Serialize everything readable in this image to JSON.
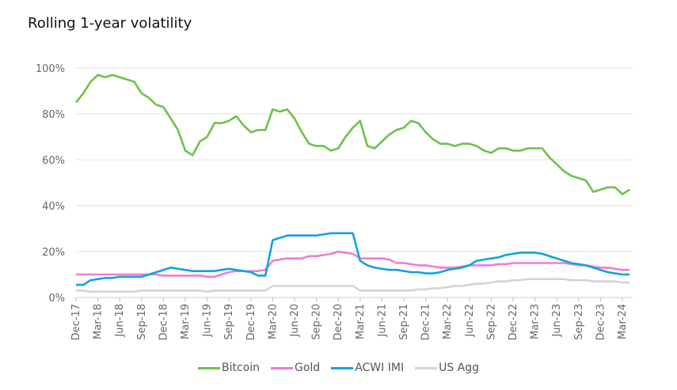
{
  "chart_data": {
    "type": "line",
    "title": "Rolling 1-year volatility",
    "xlabel": "",
    "ylabel": "",
    "ylim": [
      0,
      100
    ],
    "y_ticks": [
      "0%",
      "20%",
      "40%",
      "60%",
      "80%",
      "100%"
    ],
    "y_tick_values": [
      0,
      20,
      40,
      60,
      80,
      100
    ],
    "x_ticks": [
      "Dec-17",
      "Mar-18",
      "Jun-18",
      "Sep-18",
      "Dec-18",
      "Mar-19",
      "Jun-19",
      "Sep-19",
      "Dec-19",
      "Mar-20",
      "Jun-20",
      "Sep-20",
      "Dec-20",
      "Mar-21",
      "Jun-21",
      "Sep-21",
      "Dec-21",
      "Mar-22",
      "Jun-22",
      "Sep-22",
      "Dec-22",
      "Mar-23",
      "Jun-23",
      "Sep-23",
      "Dec-23",
      "Mar-24"
    ],
    "x_range": [
      "2017-12",
      "2024-04"
    ],
    "grid": "horizontal",
    "legend": "bottom",
    "series": [
      {
        "name": "Bitcoin",
        "color": "#6cc24a",
        "start": "2017-12",
        "frequency": "monthly",
        "values": [
          85,
          89,
          94,
          97,
          96,
          97,
          96,
          95,
          94,
          89,
          87,
          84,
          83,
          78,
          73,
          64,
          62,
          68,
          70,
          76,
          76,
          77,
          79,
          75,
          72,
          73,
          73,
          82,
          81,
          82,
          78,
          72,
          67,
          66,
          66,
          64,
          65,
          70,
          74,
          77,
          66,
          65,
          68,
          71,
          73,
          74,
          77,
          76,
          72,
          69,
          67,
          67,
          66,
          67,
          67,
          66,
          64,
          63,
          65,
          65,
          64,
          64,
          65,
          65,
          65,
          61,
          58,
          55,
          53,
          52,
          51,
          46,
          47,
          48,
          48,
          45,
          47
        ]
      },
      {
        "name": "Gold",
        "color": "#f27bd3",
        "start": "2017-12",
        "frequency": "monthly",
        "values": [
          10,
          10,
          10,
          10,
          10,
          10,
          10,
          10,
          10,
          10,
          10,
          10,
          9.5,
          9.5,
          9.5,
          9.5,
          9.5,
          9.5,
          9,
          9,
          10,
          11,
          11.5,
          11.5,
          11.5,
          11.5,
          12,
          16,
          16.5,
          17,
          17,
          17,
          18,
          18,
          18.5,
          19,
          20,
          19.5,
          19,
          17,
          17,
          17,
          17,
          16.5,
          15,
          15,
          14.5,
          14,
          14,
          13.5,
          13,
          13,
          13,
          13.5,
          14,
          14,
          14,
          14,
          14.5,
          14.5,
          15,
          15,
          15,
          15,
          15,
          15,
          15,
          15,
          14.5,
          14,
          14,
          13.5,
          13,
          13,
          12.5,
          12,
          12
        ]
      },
      {
        "name": "ACWI IMI",
        "color": "#12a2e0",
        "start": "2017-12",
        "frequency": "monthly",
        "values": [
          5.5,
          5.5,
          7.5,
          8,
          8.5,
          8.5,
          9,
          9,
          9,
          9,
          10,
          11,
          12,
          13,
          12.5,
          12,
          11.5,
          11.5,
          11.5,
          11.5,
          12,
          12.5,
          12,
          11.5,
          11,
          9.5,
          9.5,
          25,
          26,
          27,
          27,
          27,
          27,
          27,
          27.5,
          28,
          28,
          28,
          28,
          16,
          14,
          13,
          12.5,
          12,
          12,
          11.5,
          11,
          11,
          10.5,
          10.5,
          11,
          12,
          12.5,
          13,
          14,
          16,
          16.5,
          17,
          17.5,
          18.5,
          19,
          19.5,
          19.5,
          19.5,
          19,
          18,
          17,
          16,
          15,
          14.5,
          14,
          13,
          12,
          11,
          10.5,
          10,
          10
        ]
      },
      {
        "name": "US Agg",
        "color": "#d3d2dc",
        "start": "2017-12",
        "frequency": "monthly",
        "values": [
          3,
          3,
          2.5,
          2.5,
          2.5,
          2.5,
          2.5,
          2.5,
          2.5,
          3,
          3,
          3,
          3,
          3,
          3,
          3,
          3,
          3,
          2.5,
          3,
          3,
          3,
          3,
          3,
          3,
          3,
          3,
          5,
          5,
          5,
          5,
          5,
          5,
          5,
          5,
          5,
          5,
          5,
          5,
          3,
          3,
          3,
          3,
          3,
          3,
          3,
          3,
          3.5,
          3.5,
          4,
          4,
          4.5,
          5,
          5,
          5.5,
          6,
          6,
          6.5,
          7,
          7,
          7.5,
          7.5,
          8,
          8,
          8,
          8,
          8,
          8,
          7.5,
          7.5,
          7.5,
          7,
          7,
          7,
          7,
          6.5,
          6.5
        ]
      }
    ]
  }
}
